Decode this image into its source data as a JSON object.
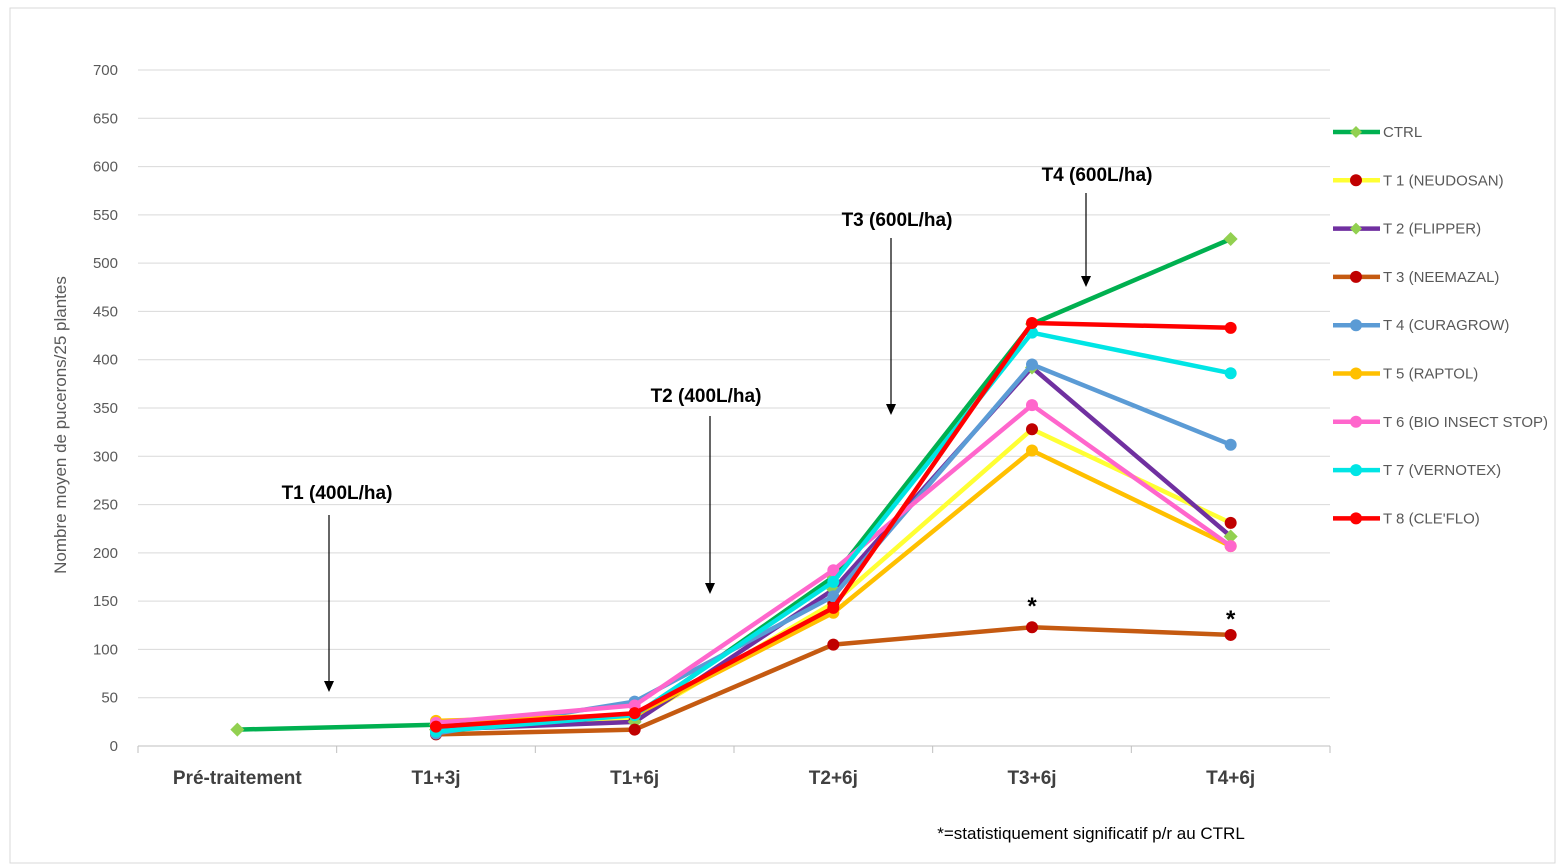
{
  "chart_data": {
    "type": "line",
    "title": "",
    "xlabel": "",
    "ylabel": "Nombre moyen de pucerons/25 plantes",
    "ylim": [
      0,
      700
    ],
    "ytick_step": 50,
    "grid": true,
    "legend_position": "right",
    "categories": [
      "Pré-traitement",
      "T1+3j",
      "T1+6j",
      "T2+6j",
      "T3+6j",
      "T4+6j"
    ],
    "series": [
      {
        "name": "CTRL",
        "color": "#00B050",
        "marker": "diamond",
        "marker_color": "#92D050",
        "values": [
          17,
          22,
          30,
          175,
          437,
          525
        ]
      },
      {
        "name": "T 1 (NEUDOSAN)",
        "color": "#FFFF33",
        "marker": "circle",
        "marker_color": "#C00000",
        "values": [
          null,
          20,
          27,
          148,
          328,
          231
        ]
      },
      {
        "name": "T 2 (FLIPPER)",
        "color": "#7030A0",
        "marker": "diamond",
        "marker_color": "#92D050",
        "values": [
          null,
          17,
          25,
          162,
          392,
          217
        ]
      },
      {
        "name": "T 3 (NEEMAZAL)",
        "color": "#C55A11",
        "marker": "circle",
        "marker_color": "#C00000",
        "values": [
          null,
          12,
          17,
          105,
          123,
          115
        ]
      },
      {
        "name": "T 4 (CURAGROW)",
        "color": "#5B9BD5",
        "marker": "circle",
        "marker_color": "#5B9BD5",
        "values": [
          null,
          13,
          46,
          155,
          395,
          312
        ]
      },
      {
        "name": "T 5 (RAPTOL)",
        "color": "#FFC000",
        "marker": "circle",
        "marker_color": "#FFC000",
        "values": [
          null,
          26,
          32,
          138,
          306,
          207
        ]
      },
      {
        "name": "T 6 (BIO INSECT STOP)",
        "color": "#FF66CC",
        "marker": "circle",
        "marker_color": "#FF66CC",
        "values": [
          null,
          24,
          42,
          182,
          353,
          207
        ]
      },
      {
        "name": "T 7 (VERNOTEX)",
        "color": "#00E5E5",
        "marker": "circle",
        "marker_color": "#00E5E5",
        "values": [
          null,
          15,
          32,
          170,
          428,
          386
        ]
      },
      {
        "name": "T 8 (CLE'FLO)",
        "color": "#FF0000",
        "marker": "circle",
        "marker_color": "#FF0000",
        "values": [
          null,
          20,
          34,
          143,
          438,
          433
        ]
      }
    ],
    "annotations": [
      {
        "text": "T1 (400L/ha)",
        "category_index": 0.47
      },
      {
        "text": "T2 (400L/ha)",
        "category_index": 2.37
      },
      {
        "text": "T3 (600L/ha)",
        "category_index": 3.32
      },
      {
        "text": "T4 (600L/ha)",
        "category_index": 4.27
      }
    ],
    "significance_marks": [
      {
        "text": "*",
        "category_index": 4
      },
      {
        "text": "*",
        "category_index": 5
      }
    ],
    "footnote": "*=statistiquement significatif p/r au CTRL"
  }
}
